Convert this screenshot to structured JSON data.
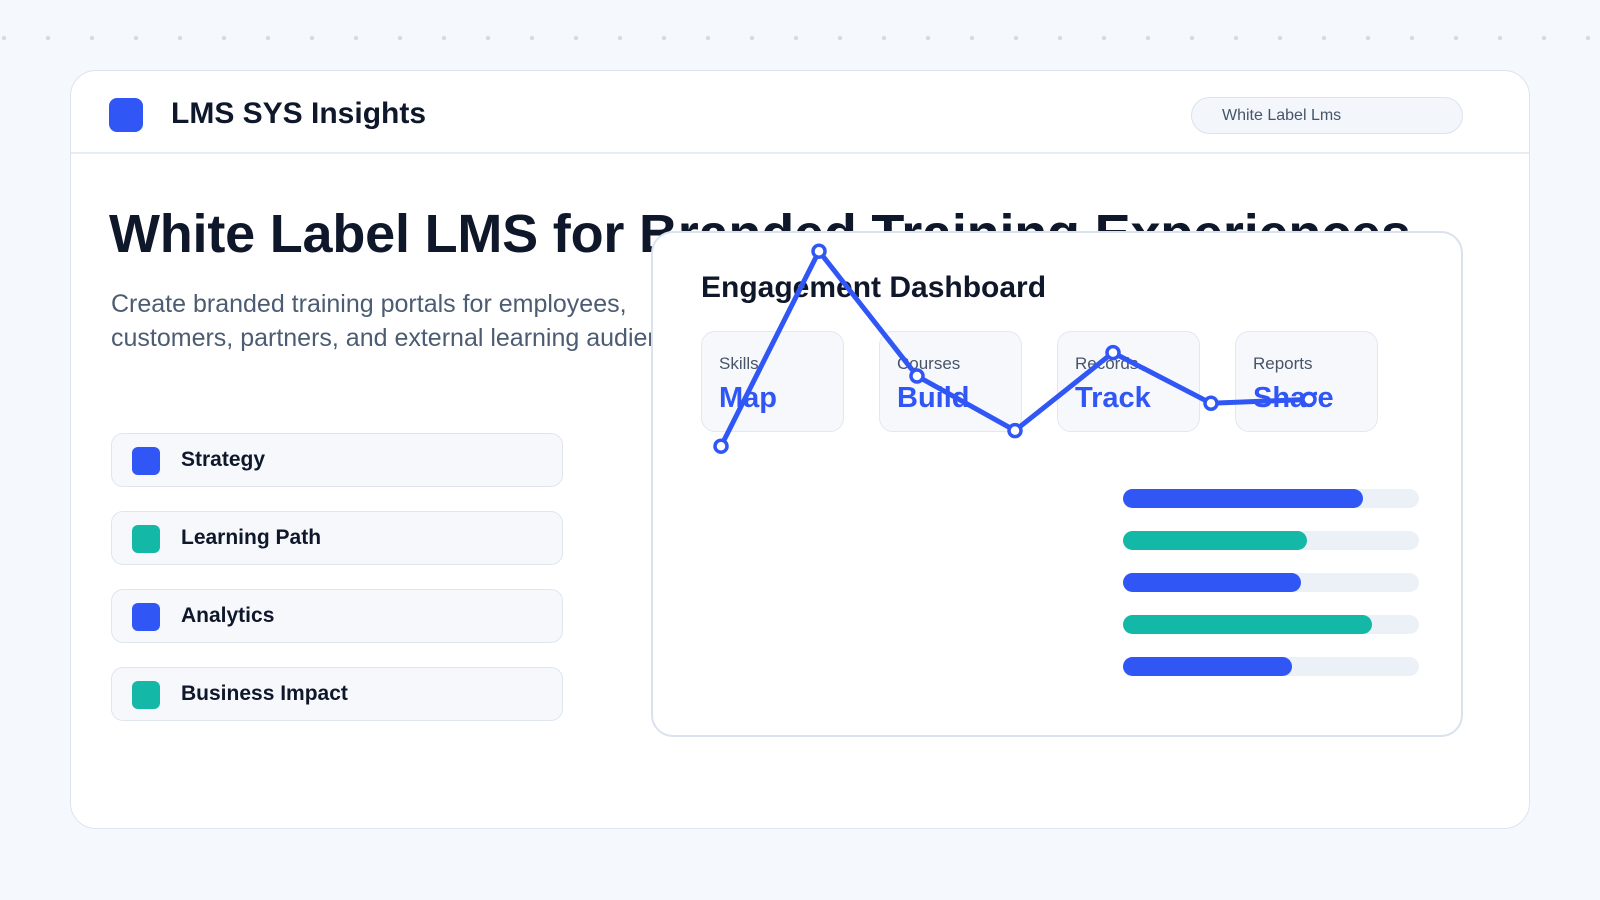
{
  "header": {
    "brand": "LMS SYS Insights",
    "tag": "White Label Lms"
  },
  "hero": {
    "title": "White Label LMS for Branded Training Experiences",
    "subtitle": "Create branded training portals for employees, customers, partners, and external learning audiences."
  },
  "features": [
    {
      "label": "Strategy",
      "color": "#3056f5"
    },
    {
      "label": "Learning Path",
      "color": "#14b8a6"
    },
    {
      "label": "Analytics",
      "color": "#3056f5"
    },
    {
      "label": "Business Impact",
      "color": "#14b8a6"
    }
  ],
  "dashboard": {
    "title": "Engagement Dashboard",
    "stats": [
      {
        "key": "Skills",
        "value": "Map"
      },
      {
        "key": "Courses",
        "value": "Build"
      },
      {
        "key": "Records",
        "value": "Track"
      },
      {
        "key": "Reports",
        "value": "Share"
      }
    ]
  },
  "chart_data": {
    "type": "line",
    "series": [
      {
        "values": [
          42,
          92,
          60,
          46,
          66,
          53,
          54
        ]
      }
    ],
    "bars": [
      {
        "value": 0.81,
        "color": "#3056f5"
      },
      {
        "value": 0.62,
        "color": "#14b8a6"
      },
      {
        "value": 0.6,
        "color": "#3056f5"
      },
      {
        "value": 0.84,
        "color": "#14b8a6"
      },
      {
        "value": 0.57,
        "color": "#3056f5"
      }
    ],
    "line_color": "#3056f5",
    "grid": false
  },
  "colors": {
    "accent": "#3056f5",
    "teal": "#14b8a6",
    "text": "#0f172a",
    "muted": "#4b5c73"
  }
}
